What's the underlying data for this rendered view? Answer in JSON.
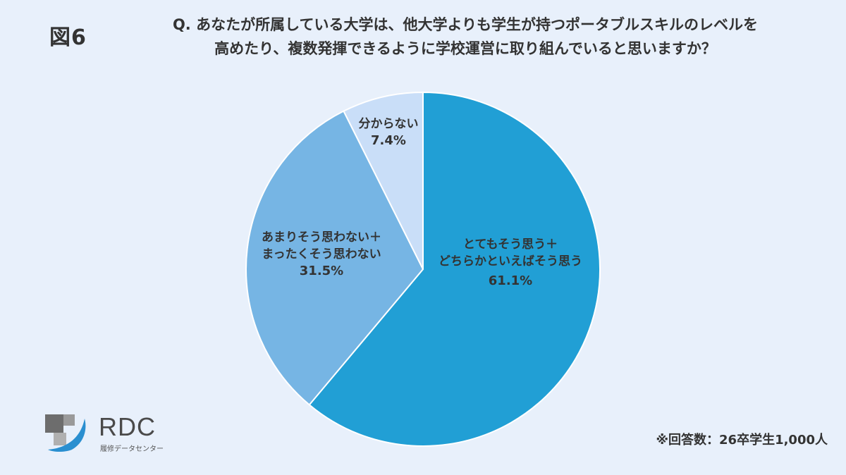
{
  "figure_label": "図6",
  "question": {
    "line1": "Q. あなたが所属している大学は、他大学よりも学生が持つポータブルスキルのレベルを",
    "line2": "高めたり、複数発揮できるように学校運営に取り組んでいると思いますか？"
  },
  "chart_data": {
    "type": "pie",
    "start_angle_deg": 0,
    "direction": "clockwise",
    "slices": [
      {
        "label_lines": [
          "とてもそう思う＋",
          "どちらかといえばそう思う"
        ],
        "value": 61.1,
        "value_label": "61.1%",
        "color": "#219fd5"
      },
      {
        "label_lines": [
          "あまりそう思わない＋",
          "まったくそう思わない"
        ],
        "value": 31.5,
        "value_label": "31.5%",
        "color": "#76b5e4"
      },
      {
        "label_lines": [
          "分からない"
        ],
        "value": 7.4,
        "value_label": "7.4%",
        "color": "#c9def8"
      }
    ]
  },
  "logo": {
    "name": "RDC",
    "subtitle": "履修データセンター"
  },
  "note": "※回答数：26卒学生1,000人",
  "colors": {
    "background": "#e8f0fb",
    "text": "#333333"
  }
}
